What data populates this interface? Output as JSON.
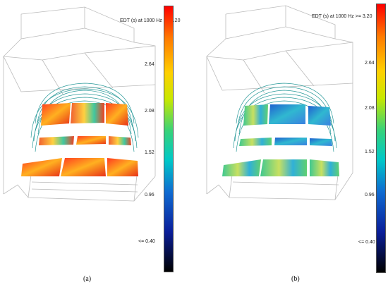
{
  "colorbar": {
    "title": "EDT (s)  at 1000 Hz >= 3.20",
    "ticks": [
      "2.64",
      "2.08",
      "1.52",
      "0.96",
      "<= 0.40"
    ],
    "gradient": [
      "#ff0000",
      "#ff7a00",
      "#ffd000",
      "#c8e800",
      "#37d27a",
      "#00c8c8",
      "#0f6bd1",
      "#0a1e9a",
      "#000000"
    ]
  },
  "panels": [
    {
      "caption": "(a)",
      "tint": "warm"
    },
    {
      "caption": "(b)",
      "tint": "cool"
    }
  ],
  "reflector_color": "#2a9a9a",
  "wireframe_color": "#bbbbbb"
}
